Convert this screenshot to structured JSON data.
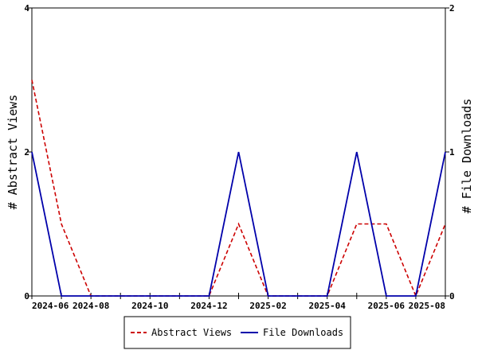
{
  "chart_data": {
    "type": "line",
    "x": [
      "2024-06",
      "2024-07",
      "2024-08",
      "2024-09",
      "2024-10",
      "2024-11",
      "2024-12",
      "2025-01",
      "2025-02",
      "2025-03",
      "2025-04",
      "2025-05",
      "2025-06",
      "2025-07",
      "2025-08"
    ],
    "x_ticks": [
      "2024-06",
      "2024-08",
      "2024-10",
      "2024-12",
      "2025-02",
      "2025-04",
      "2025-06",
      "2025-08"
    ],
    "series": [
      {
        "name": "Abstract Views",
        "axis": "left",
        "color": "#cc0000",
        "dash": "dashed",
        "values": [
          3,
          1,
          0,
          0,
          0,
          0,
          0,
          1,
          0,
          0,
          0,
          1,
          1,
          0,
          1
        ]
      },
      {
        "name": "File Downloads",
        "axis": "right",
        "color": "#0000aa",
        "dash": "solid",
        "values": [
          1,
          0,
          0,
          0,
          0,
          0,
          0,
          1,
          0,
          0,
          0,
          1,
          0,
          0,
          1
        ]
      }
    ],
    "ylabel": "# Abstract Views",
    "ylabel_right": "# File Downloads",
    "ylim": [
      0,
      4
    ],
    "ylim_right": [
      0,
      2
    ],
    "yticks": [
      0,
      2,
      4
    ],
    "yticks_right": [
      0,
      1,
      2
    ],
    "legend_position": "bottom-center",
    "grid": false
  }
}
